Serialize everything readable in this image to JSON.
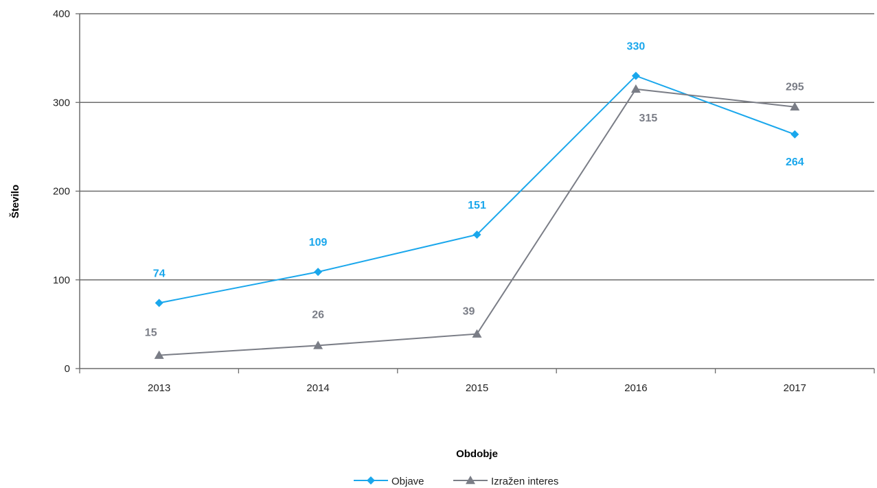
{
  "chart_data": {
    "type": "line",
    "categories": [
      "2013",
      "2014",
      "2015",
      "2016",
      "2017"
    ],
    "series": [
      {
        "name": "Objave",
        "values": [
          74,
          109,
          151,
          330,
          264
        ],
        "color": "#1AA7EC",
        "marker": "diamond"
      },
      {
        "name": "Izražen interes",
        "values": [
          15,
          26,
          39,
          315,
          295
        ],
        "color": "#7A7D86",
        "marker": "triangle"
      }
    ],
    "xlabel": "Obdobje",
    "ylabel": "Število",
    "ylim": [
      0,
      400
    ],
    "yticks": [
      "0",
      "100",
      "200",
      "300",
      "400"
    ],
    "grid": true,
    "legend_position": "bottom-center"
  }
}
